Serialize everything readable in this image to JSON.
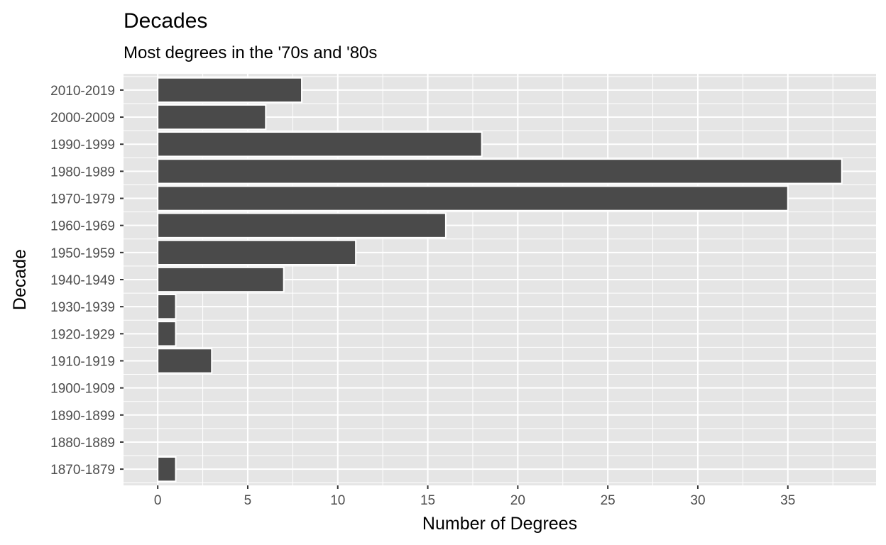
{
  "chart_data": {
    "type": "bar",
    "orientation": "horizontal",
    "title": "Decades",
    "subtitle": "Most degrees in the '70s and '80s",
    "xlabel": "Number of Degrees",
    "ylabel": "Decade",
    "categories": [
      "1870-1879",
      "1880-1889",
      "1890-1899",
      "1900-1909",
      "1910-1919",
      "1920-1929",
      "1930-1939",
      "1940-1949",
      "1950-1959",
      "1960-1969",
      "1970-1979",
      "1980-1989",
      "1990-1999",
      "2000-2009",
      "2010-2019"
    ],
    "values": [
      1,
      0,
      0,
      0,
      3,
      1,
      1,
      7,
      11,
      16,
      35,
      38,
      18,
      6,
      8
    ],
    "xlim": [
      -1.9,
      39.9
    ],
    "xticks": [
      0,
      5,
      10,
      15,
      20,
      25,
      30,
      35
    ],
    "grid": true,
    "legend": "none",
    "colors": {
      "panel_background": "#e5e5e5",
      "grid": "#ffffff",
      "bar_fill": "#4a4a4a",
      "bar_outline": "#ffffff",
      "tick_label": "#4d4d4d",
      "tick_mark": "#333333"
    }
  }
}
